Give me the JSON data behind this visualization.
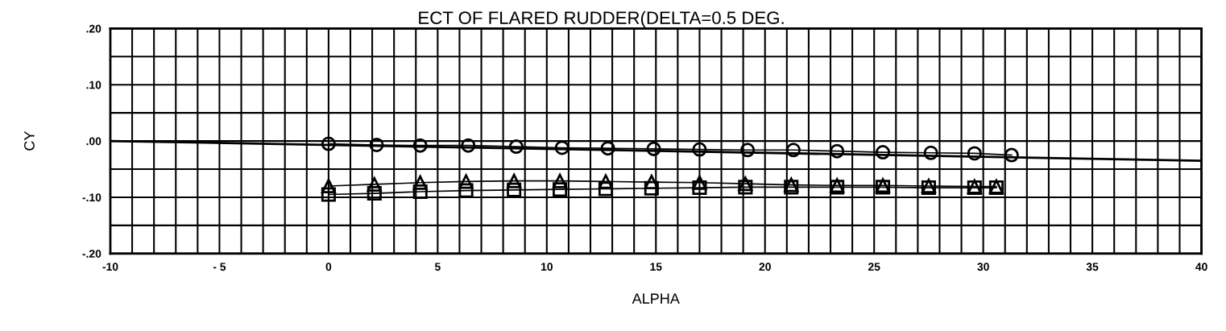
{
  "chart_data": {
    "type": "line",
    "title": "ECT OF FLARED RUDDER(DELTA=0.5 DEG.",
    "xlabel": "ALPHA",
    "ylabel": "CY",
    "xlim": [
      -10,
      40
    ],
    "ylim": [
      -0.2,
      0.2
    ],
    "xticks": [
      {
        "value": -10,
        "label": "-10"
      },
      {
        "value": -9,
        "label": null
      },
      {
        "value": -8,
        "label": null
      },
      {
        "value": -7,
        "label": null
      },
      {
        "value": -6,
        "label": null
      },
      {
        "value": -5,
        "label": "- 5"
      },
      {
        "value": -4,
        "label": null
      },
      {
        "value": -3,
        "label": null
      },
      {
        "value": -2,
        "label": null
      },
      {
        "value": -1,
        "label": null
      },
      0,
      {
        "value": 1,
        "label": null
      },
      {
        "value": 2,
        "label": null
      },
      {
        "value": 3,
        "label": null
      },
      {
        "value": 4,
        "label": null
      },
      5,
      {
        "value": 6,
        "label": null
      },
      {
        "value": 7,
        "label": null
      },
      {
        "value": 8,
        "label": null
      },
      {
        "value": 9,
        "label": null
      },
      10,
      {
        "value": 11,
        "label": null
      },
      {
        "value": 12,
        "label": null
      },
      {
        "value": 13,
        "label": null
      },
      {
        "value": 14,
        "label": null
      },
      15,
      {
        "value": 16,
        "label": null
      },
      {
        "value": 17,
        "label": null
      },
      {
        "value": 18,
        "label": null
      },
      {
        "value": 19,
        "label": null
      },
      20,
      {
        "value": 21,
        "label": null
      },
      {
        "value": 22,
        "label": null
      },
      {
        "value": 23,
        "label": null
      },
      {
        "value": 24,
        "label": null
      },
      25,
      {
        "value": 26,
        "label": null
      },
      {
        "value": 27,
        "label": null
      },
      {
        "value": 28,
        "label": null
      },
      {
        "value": 29,
        "label": null
      },
      30,
      {
        "value": 31,
        "label": null
      },
      {
        "value": 32,
        "label": null
      },
      {
        "value": 33,
        "label": null
      },
      {
        "value": 34,
        "label": null
      },
      35,
      {
        "value": 36,
        "label": null
      },
      {
        "value": 37,
        "label": null
      },
      {
        "value": 38,
        "label": null
      },
      {
        "value": 39,
        "label": null
      },
      40
    ],
    "yticks": [
      {
        "value": -0.2,
        "label": "-.20"
      },
      {
        "value": -0.15,
        "label": null
      },
      {
        "value": -0.1,
        "label": "-.10"
      },
      {
        "value": -0.05,
        "label": null
      },
      {
        "value": 0,
        "label": ".00"
      },
      {
        "value": 0.05,
        "label": null
      },
      {
        "value": 0.1,
        "label": ".10"
      },
      {
        "value": 0.15,
        "label": null
      },
      {
        "value": 0.2,
        "label": ".20"
      }
    ],
    "grid": true,
    "series": [
      {
        "color": "#000000",
        "marker": "circle",
        "x": [
          0,
          2.2,
          4.2,
          6.4,
          8.6,
          10.7,
          12.8,
          14.9,
          17.0,
          19.2,
          21.3,
          23.3,
          25.4,
          27.6,
          29.6,
          31.3
        ],
        "values": [
          -0.005,
          -0.007,
          -0.008,
          -0.008,
          -0.01,
          -0.012,
          -0.013,
          -0.014,
          -0.015,
          -0.016,
          -0.016,
          -0.018,
          -0.02,
          -0.021,
          -0.022,
          -0.025
        ]
      },
      {
        "color": "#000000",
        "marker": "triangle",
        "x": [
          0,
          2.1,
          4.2,
          6.3,
          8.5,
          10.6,
          12.7,
          14.8,
          17.0,
          19.1,
          21.2,
          23.3,
          25.4,
          27.5,
          29.6,
          30.6
        ],
        "values": [
          -0.08,
          -0.077,
          -0.074,
          -0.072,
          -0.071,
          -0.071,
          -0.072,
          -0.073,
          -0.074,
          -0.076,
          -0.078,
          -0.079,
          -0.079,
          -0.08,
          -0.081,
          -0.081
        ]
      },
      {
        "color": "#000000",
        "marker": "square",
        "x": [
          0,
          2.1,
          4.2,
          6.3,
          8.5,
          10.6,
          12.7,
          14.8,
          17.0,
          19.1,
          21.2,
          23.3,
          25.4,
          27.5,
          29.6,
          30.6
        ],
        "values": [
          -0.095,
          -0.093,
          -0.09,
          -0.088,
          -0.087,
          -0.086,
          -0.085,
          -0.084,
          -0.083,
          -0.082,
          -0.082,
          -0.082,
          -0.082,
          -0.083,
          -0.083,
          -0.083
        ]
      },
      {
        "color": "#000000",
        "marker": "none",
        "x": [
          -10,
          40
        ],
        "values": [
          0.0,
          -0.035
        ]
      }
    ]
  }
}
